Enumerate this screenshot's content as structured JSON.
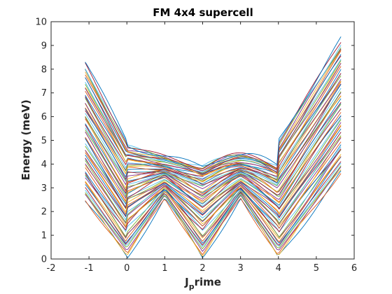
{
  "chart_data": {
    "type": "line",
    "title": "FM 4x4 supercell",
    "xlabel_main": "J",
    "xlabel_sub": "p",
    "xlabel_rest": "rime",
    "ylabel": "Energy (meV)",
    "xlim": [
      -2,
      6
    ],
    "ylim": [
      0,
      10
    ],
    "xticks": [
      "-2",
      "-1",
      "0",
      "1",
      "2",
      "3",
      "4",
      "5",
      "6"
    ],
    "yticks": [
      "0",
      "1",
      "2",
      "3",
      "4",
      "5",
      "6",
      "7",
      "8",
      "9",
      "10"
    ],
    "x_range": [
      -1.1,
      5.65
    ],
    "band_count": 64,
    "grid": false,
    "band_model": {
      "description_free": true,
      "left_top": 8.3,
      "left_bottom": 2.45,
      "right_top": 9.25,
      "right_bottom": 3.6,
      "mid_value": 3.0,
      "gamma_points": [
        0,
        2,
        4
      ],
      "kink_points": [
        1,
        3
      ]
    },
    "series_colors": [
      "#0072BD",
      "#D95319",
      "#EDB120",
      "#7E2F8E",
      "#77AC30",
      "#4DBEEE",
      "#A2142F"
    ]
  }
}
